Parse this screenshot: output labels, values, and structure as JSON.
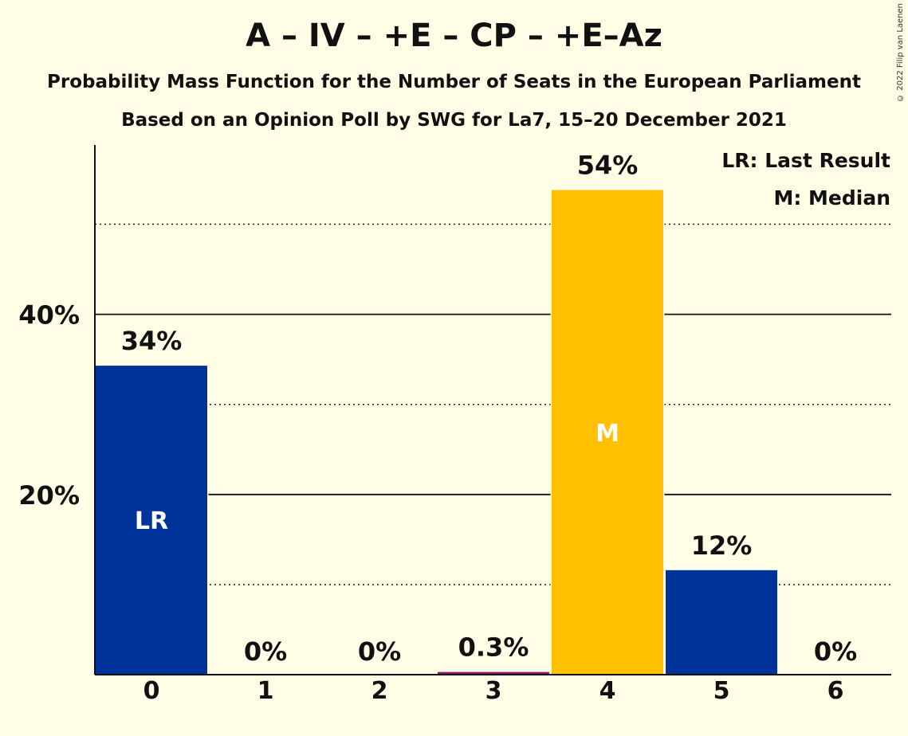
{
  "title": "A – IV – +E – CP – +E–Az",
  "subtitle": "Probability Mass Function for the Number of Seats in the European Parliament",
  "subtitle2": "Based on an Opinion Poll by SWG for La7, 15–20 December 2021",
  "copyright": "© 2022 Filip van Laenen",
  "legend": {
    "lr": "LR: Last Result",
    "m": "M: Median"
  },
  "colors": {
    "background": "#FFFDE6",
    "bar_blue": "#003399",
    "bar_median": "#FFC000",
    "bar_small": "#8B1A6B"
  },
  "chart_data": {
    "type": "bar",
    "categories": [
      "0",
      "1",
      "2",
      "3",
      "4",
      "5",
      "6"
    ],
    "values": [
      34.3,
      0,
      0,
      0.3,
      53.8,
      11.6,
      0
    ],
    "value_labels": [
      "34%",
      "0%",
      "0%",
      "0.3%",
      "54%",
      "12%",
      "0%"
    ],
    "bar_markers": [
      "LR",
      "",
      "",
      "",
      "M",
      "",
      ""
    ],
    "ylim": [
      0,
      58.8
    ],
    "ytick_labels": [
      {
        "value": 20,
        "label": "20%"
      },
      {
        "value": 40,
        "label": "40%"
      }
    ],
    "gridlines_solid": [
      20,
      40
    ],
    "gridlines_dotted": [
      10,
      30,
      50
    ],
    "grid": true,
    "legend_position": "top-right",
    "xlabel": "",
    "ylabel": ""
  }
}
